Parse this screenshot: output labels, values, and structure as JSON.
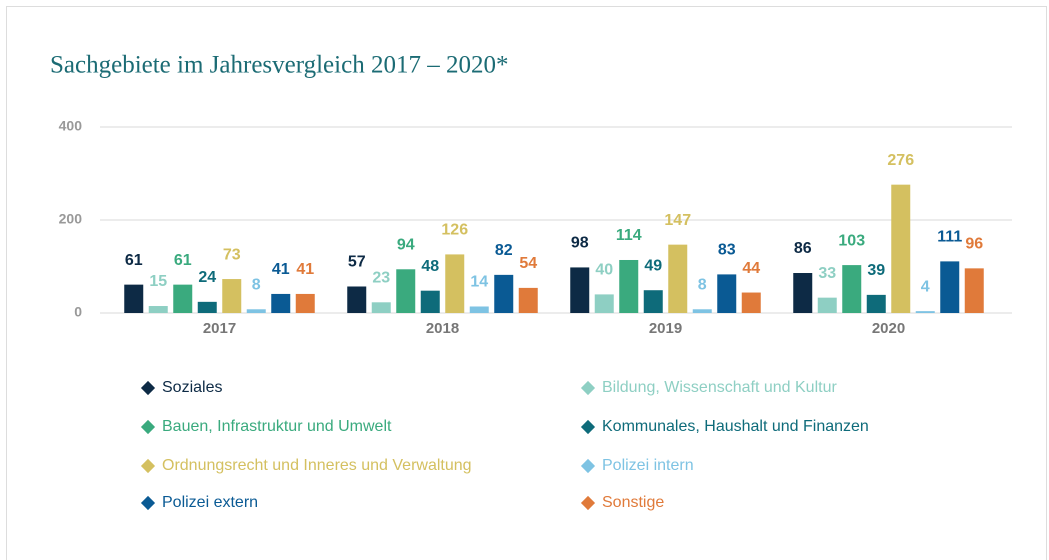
{
  "chart_data": {
    "type": "bar",
    "title": "Sachgebiete im Jahresvergleich 2017 – 2020*",
    "categories": [
      "2017",
      "2018",
      "2019",
      "2020"
    ],
    "series": [
      {
        "name": "Soziales",
        "color": "#0d2a45",
        "values": [
          61,
          57,
          98,
          86
        ]
      },
      {
        "name": "Bildung, Wissenschaft und Kultur",
        "color": "#8ecfc3",
        "values": [
          15,
          23,
          40,
          33
        ]
      },
      {
        "name": "Bauen, Infrastruktur und Umwelt",
        "color": "#3aaa7e",
        "values": [
          61,
          94,
          114,
          103
        ]
      },
      {
        "name": "Kommunales, Haushalt und Finanzen",
        "color": "#0e6b7a",
        "values": [
          24,
          48,
          49,
          39
        ]
      },
      {
        "name": "Ordnungsrecht und Inneres und Verwaltung",
        "color": "#d4c060",
        "values": [
          73,
          126,
          147,
          276
        ]
      },
      {
        "name": "Polizei intern",
        "color": "#7ec3e3",
        "values": [
          8,
          14,
          8,
          4
        ]
      },
      {
        "name": "Polizei extern",
        "color": "#0a5a94",
        "values": [
          41,
          82,
          83,
          111
        ]
      },
      {
        "name": "Sonstige",
        "color": "#e07a3a",
        "values": [
          41,
          54,
          44,
          96
        ]
      }
    ],
    "ylim": [
      0,
      400
    ],
    "yticks": [
      0,
      200,
      400
    ],
    "grid": true
  }
}
